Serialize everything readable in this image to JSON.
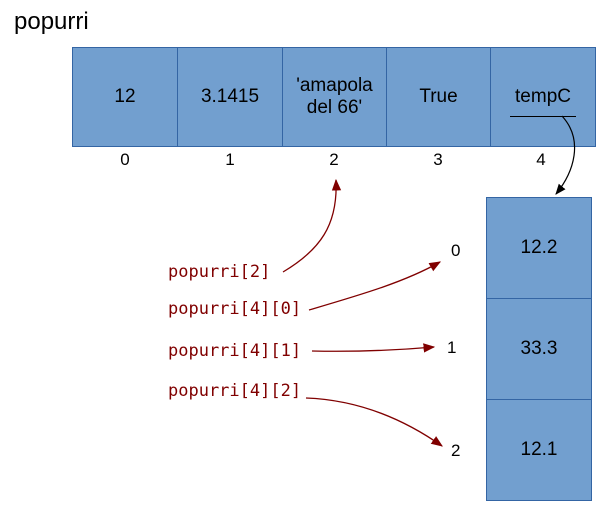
{
  "title": "popurri",
  "list": {
    "cells": [
      "12",
      "3.1415",
      "'amapola\ndel 66'",
      "True",
      "tempC"
    ],
    "indices": [
      "0",
      "1",
      "2",
      "3",
      "4"
    ]
  },
  "sublist": {
    "cells": [
      "12.2",
      "33.3",
      "12.1"
    ],
    "indices": [
      "0",
      "1",
      "2"
    ]
  },
  "expressions": [
    "popurri[2]",
    "popurri[4][0]",
    "popurri[4][1]",
    "popurri[4][2]"
  ],
  "colors": {
    "cell_fill": "#729fcf",
    "cell_border": "#3465a4",
    "arrow": "#800000",
    "pointer": "#000000"
  }
}
